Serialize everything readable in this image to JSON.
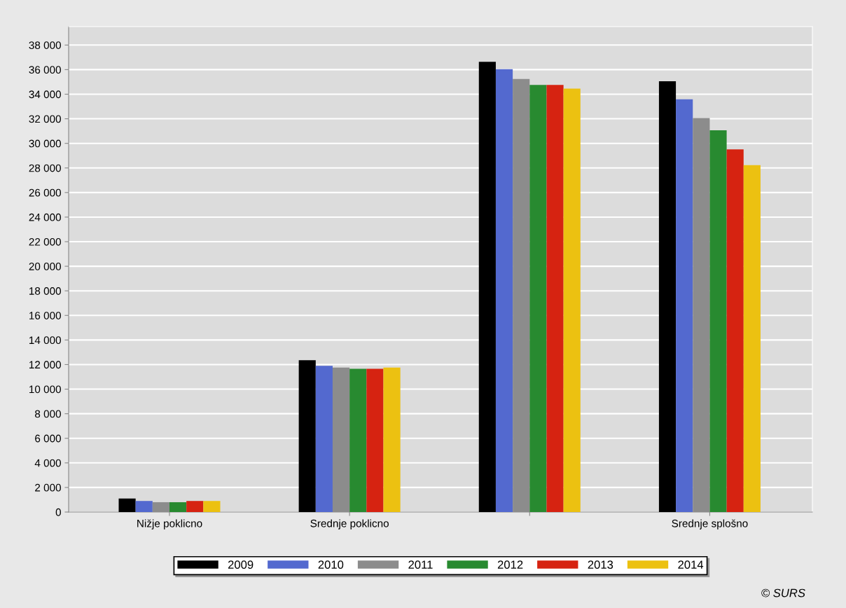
{
  "chart_data": {
    "type": "bar",
    "categories": [
      "Nižje poklicno",
      "Srednje poklicno",
      null,
      "Srednje splošno"
    ],
    "series": [
      {
        "name": "2009",
        "color": "#000000",
        "values": [
          1100,
          12350,
          36630,
          35050
        ]
      },
      {
        "name": "2010",
        "color": "#5369cf",
        "values": [
          900,
          11900,
          36040,
          33580
        ]
      },
      {
        "name": "2011",
        "color": "#8c8c8c",
        "values": [
          800,
          11750,
          35240,
          32060
        ]
      },
      {
        "name": "2012",
        "color": "#288a30",
        "values": [
          800,
          11650,
          34760,
          31060
        ]
      },
      {
        "name": "2013",
        "color": "#d62311",
        "values": [
          900,
          11650,
          34760,
          29510
        ]
      },
      {
        "name": "2014",
        "color": "#ecc111",
        "values": [
          900,
          11750,
          34460,
          28230
        ]
      }
    ],
    "ylim": [
      0,
      39500
    ],
    "yticks": [
      0,
      {
        "value": 2000,
        "label": "2 000"
      },
      {
        "value": 4000,
        "label": "4 000"
      },
      {
        "value": 6000,
        "label": "6 000"
      },
      {
        "value": 8000,
        "label": "8 000"
      },
      {
        "value": 10000,
        "label": "10 000"
      },
      {
        "value": 12000,
        "label": "12 000"
      },
      {
        "value": 14000,
        "label": "14 000"
      },
      {
        "value": 16000,
        "label": "16 000"
      },
      {
        "value": 18000,
        "label": "18 000"
      },
      {
        "value": 20000,
        "label": "20 000"
      },
      {
        "value": 22000,
        "label": "22 000"
      },
      {
        "value": 24000,
        "label": "24 000"
      },
      {
        "value": 26000,
        "label": "26 000"
      },
      {
        "value": 28000,
        "label": "28 000"
      },
      {
        "value": 30000,
        "label": "30 000"
      },
      {
        "value": 32000,
        "label": "32 000"
      },
      {
        "value": 34000,
        "label": "34 000"
      },
      {
        "value": 36000,
        "label": "36 000"
      },
      {
        "value": 38000,
        "label": "38 000"
      }
    ],
    "grid": "y",
    "legend": "bottom",
    "annotations": [
      "© SURS"
    ]
  }
}
